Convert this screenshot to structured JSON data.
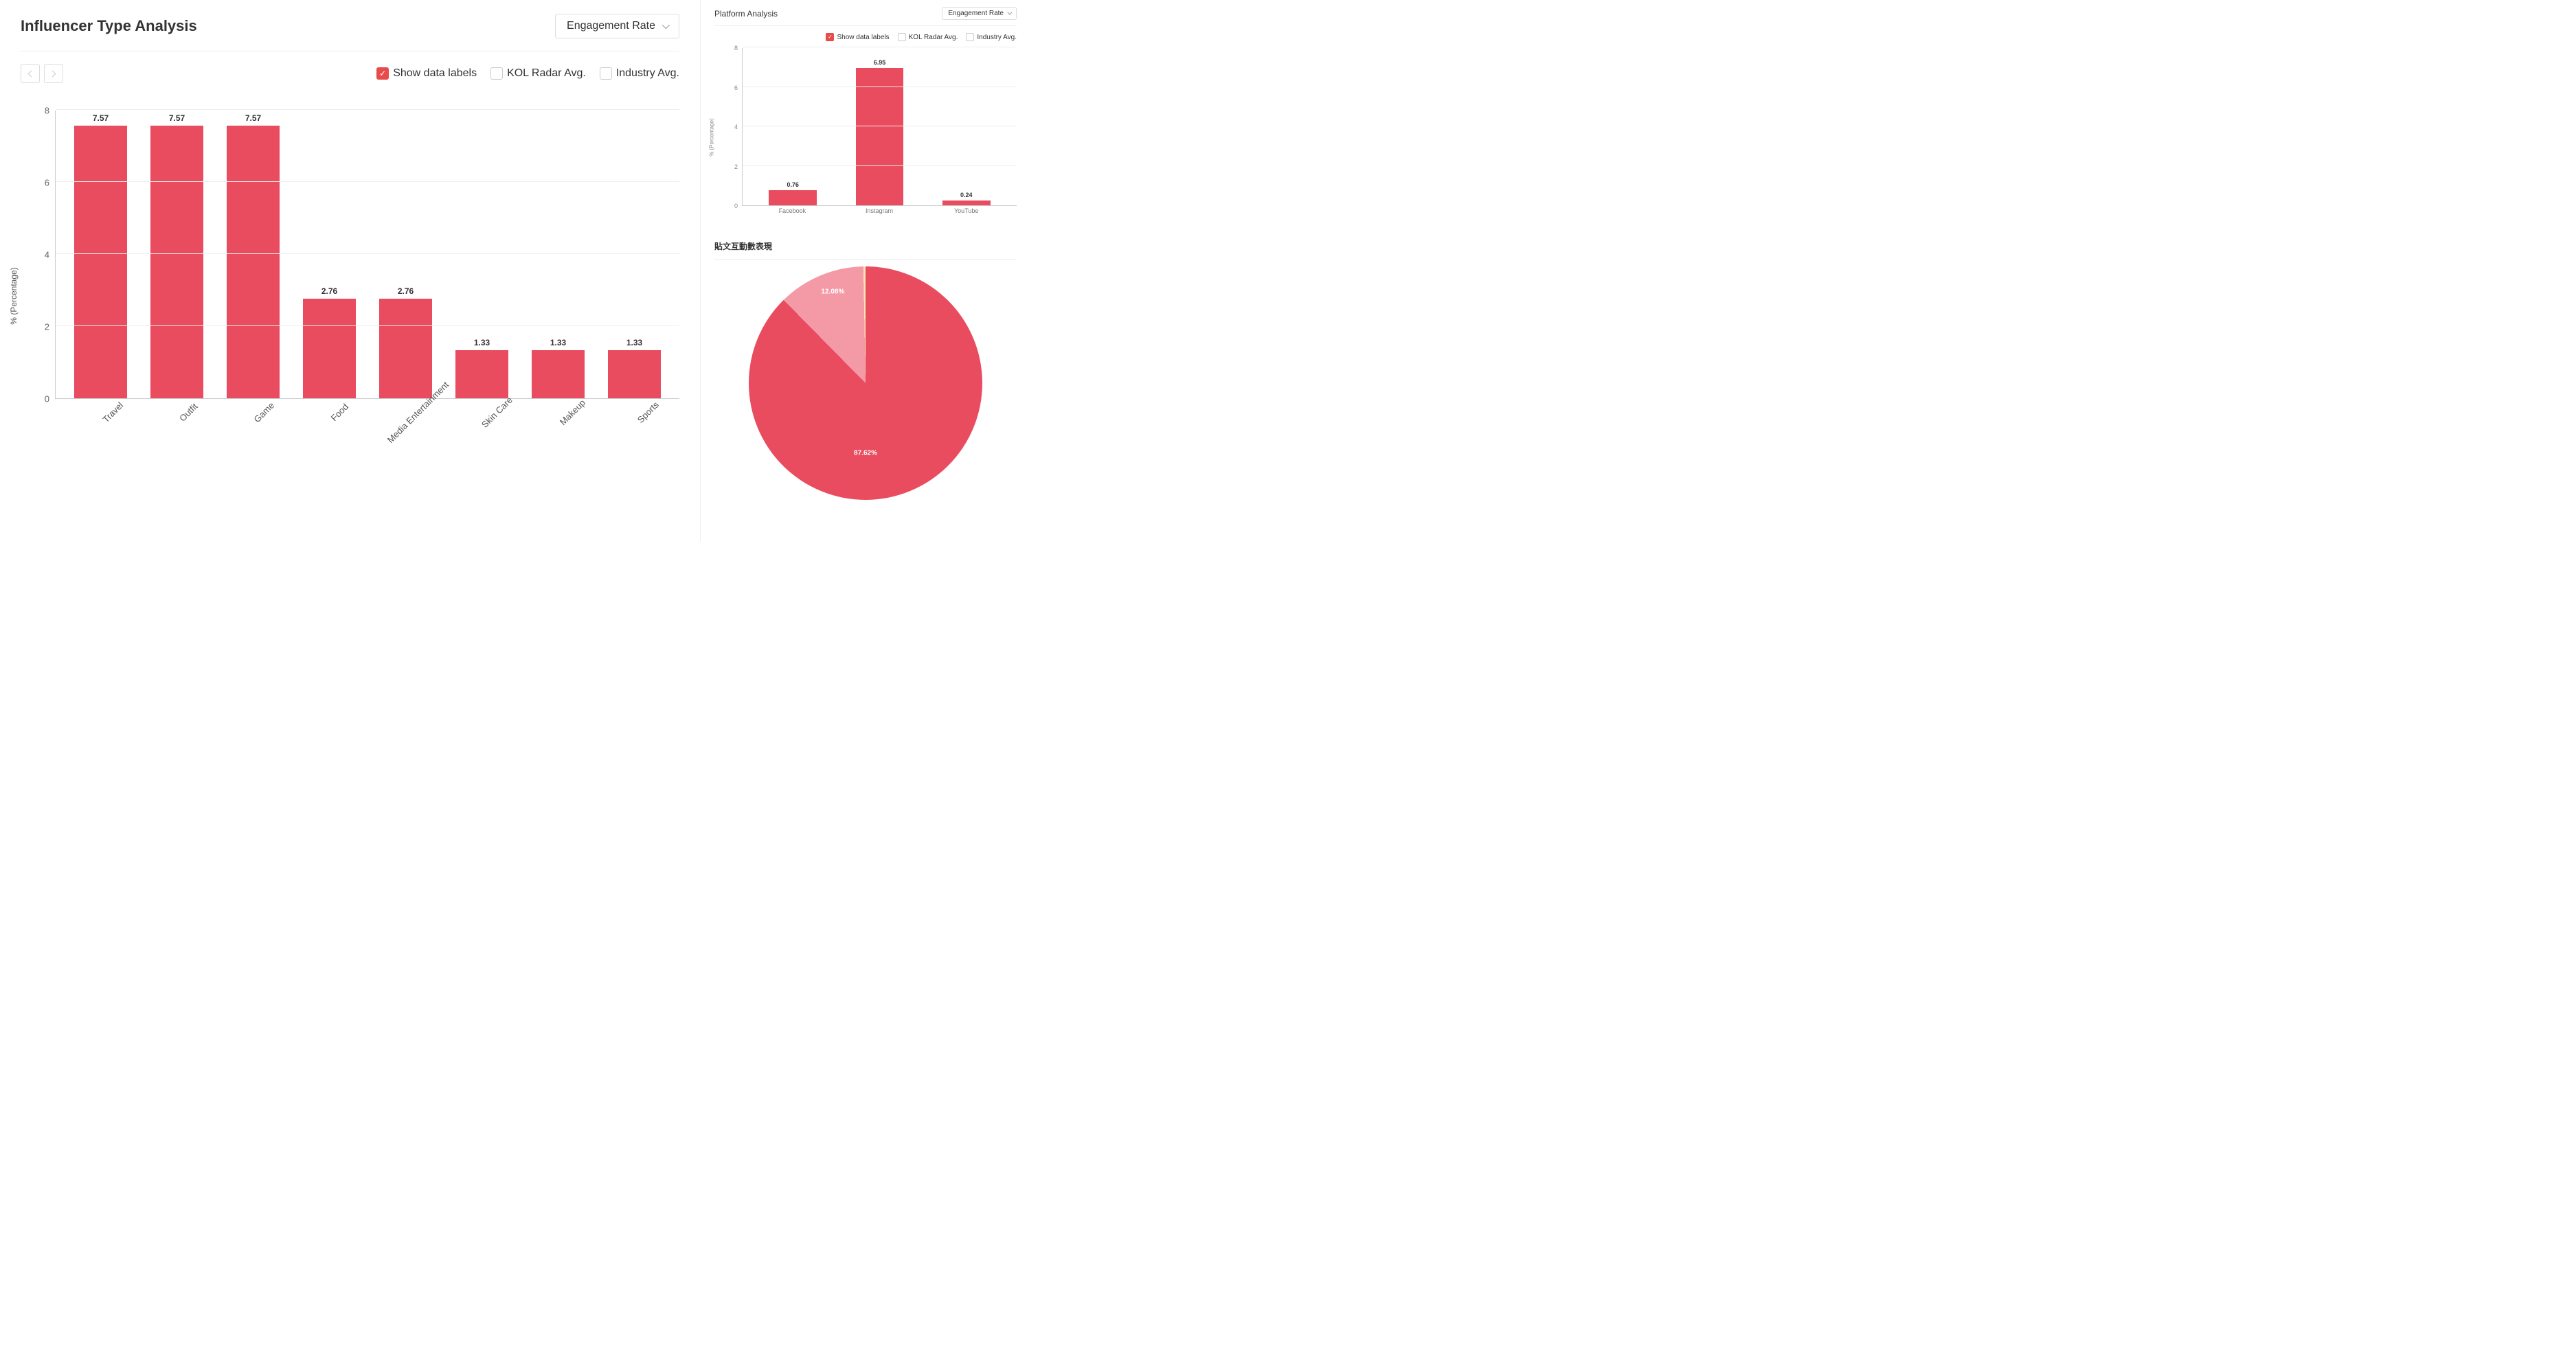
{
  "left": {
    "title": "Influencer Type Analysis",
    "dropdown": "Engagement Rate",
    "legend": {
      "show_labels": "Show data labels",
      "kol_avg": "KOL Radar Avg.",
      "industry_avg": "Industry Avg."
    },
    "y_axis_label": "% (Percentage)",
    "chart": {
      "type": "bar",
      "categories": [
        "Travel",
        "Outfit",
        "Game",
        "Food",
        "Media Entertainment",
        "Skin Care",
        "Makeup",
        "Sports"
      ],
      "values": [
        7.57,
        7.57,
        7.57,
        2.76,
        2.76,
        1.33,
        1.33,
        1.33
      ],
      "bar_color": "#e94b5f",
      "ylim": [
        0,
        8
      ],
      "ytick_step": 2,
      "grid_color": "#eeeeee",
      "axis_color": "#cccccc",
      "label_fontsize": 13,
      "value_fontsize": 12
    }
  },
  "right_top": {
    "title": "Platform Analysis",
    "dropdown": "Engagement Rate",
    "legend": {
      "show_labels": "Show data labels",
      "kol_avg": "KOL Radar Avg.",
      "industry_avg": "Industry Avg."
    },
    "y_axis_label": "% (Percentage)",
    "chart": {
      "type": "bar",
      "categories": [
        "Facebook",
        "Instagram",
        "YouTube"
      ],
      "values": [
        0.76,
        6.95,
        0.24
      ],
      "bar_color": "#e94b5f",
      "ylim": [
        0,
        8
      ],
      "ytick_step": 2,
      "grid_color": "#eeeeee"
    }
  },
  "right_bottom": {
    "title": "貼文互動數表現",
    "chart": {
      "type": "pie",
      "slices": [
        {
          "label": "87.62%",
          "value": 87.62,
          "color": "#e94b5f"
        },
        {
          "label": "12.08%",
          "value": 12.08,
          "color": "#f49aa6"
        },
        {
          "label": "",
          "value": 0.3,
          "color": "#fde4b8"
        }
      ]
    }
  },
  "colors": {
    "accent": "#e94b4b",
    "text": "#333333",
    "muted": "#888888",
    "border": "#dddddd"
  }
}
